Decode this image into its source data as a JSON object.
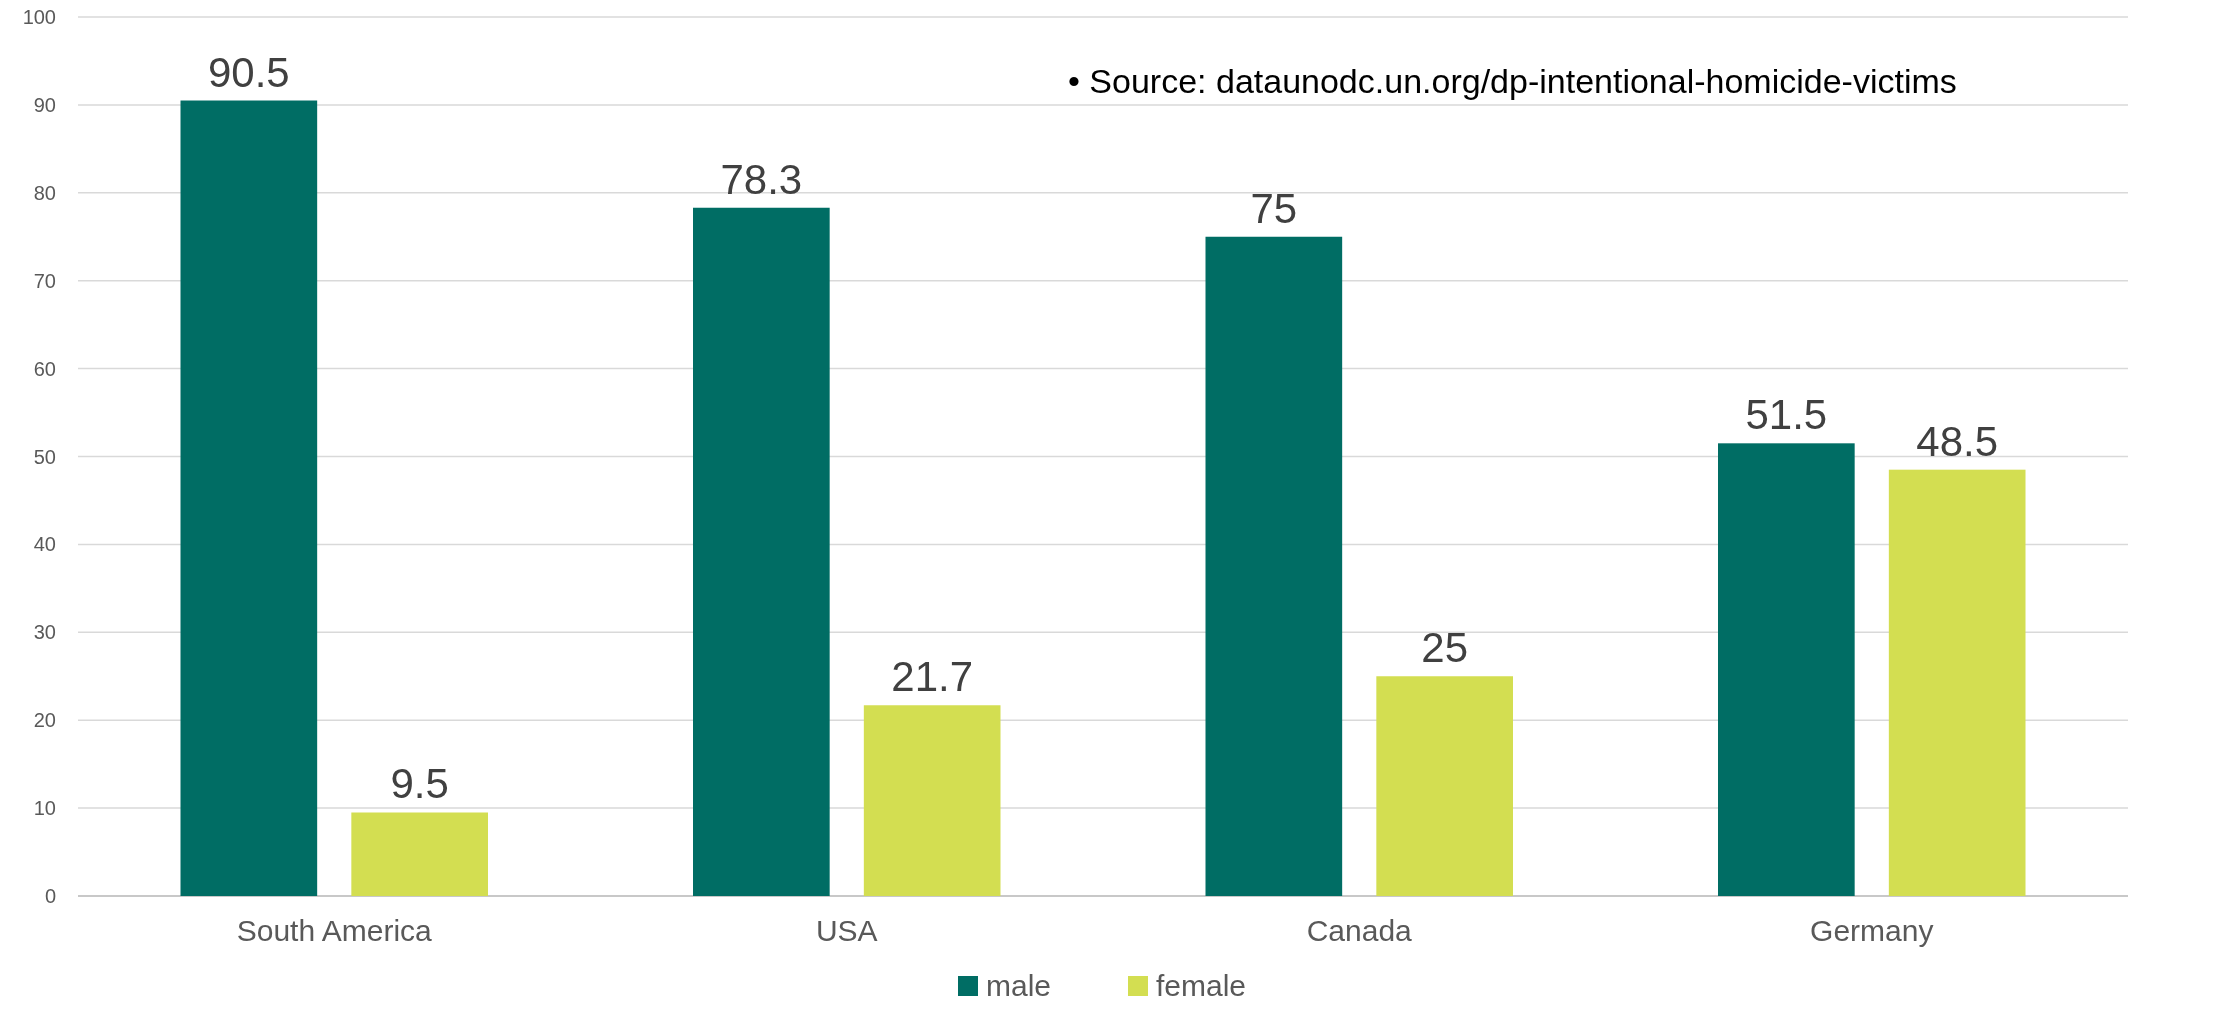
{
  "chart_data": {
    "type": "bar",
    "categories": [
      "South America",
      "USA",
      "Canada",
      "Germany"
    ],
    "series": [
      {
        "name": "male",
        "color": "#006d64",
        "values": [
          90.5,
          78.3,
          75,
          51.5
        ]
      },
      {
        "name": "female",
        "color": "#d3de51",
        "values": [
          9.5,
          21.7,
          25,
          48.5
        ]
      }
    ],
    "ylim": [
      0,
      100
    ],
    "yticks": [
      0,
      10,
      20,
      30,
      40,
      50,
      60,
      70,
      80,
      90,
      100
    ],
    "grid": "y",
    "legend": "bottom",
    "data_labels": true,
    "annotations": [
      "• Source: dataunodc.un.org/dp-intentional-homicide-victims"
    ]
  }
}
